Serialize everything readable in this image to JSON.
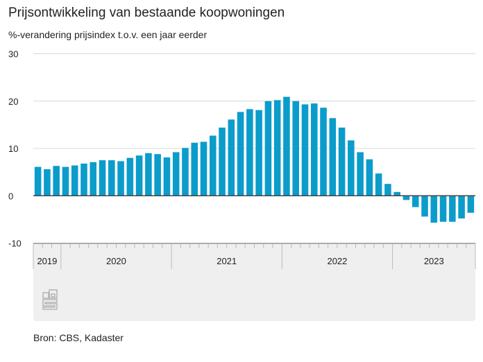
{
  "title": "Prijsontwikkeling van bestaande koopwoningen",
  "subtitle": "%-verandering prijsindex t.o.v. een jaar eerder",
  "source": "Bron: CBS, Kadaster",
  "logo": "cbs",
  "chart_data": {
    "type": "bar",
    "title": "Prijsontwikkeling van bestaande koopwoningen",
    "ylabel": "%-verandering prijsindex t.o.v. een jaar eerder",
    "ylim": [
      -10,
      30
    ],
    "yticks": [
      -10,
      0,
      10,
      20,
      30
    ],
    "grid": true,
    "color": "#0b9ccb",
    "years": [
      {
        "label": "2019",
        "months": 3
      },
      {
        "label": "2020",
        "months": 12
      },
      {
        "label": "2021",
        "months": 12
      },
      {
        "label": "2022",
        "months": 12
      },
      {
        "label": "2023",
        "months": 9
      }
    ],
    "categories": [
      "2019-10",
      "2019-11",
      "2019-12",
      "2020-01",
      "2020-02",
      "2020-03",
      "2020-04",
      "2020-05",
      "2020-06",
      "2020-07",
      "2020-08",
      "2020-09",
      "2020-10",
      "2020-11",
      "2020-12",
      "2021-01",
      "2021-02",
      "2021-03",
      "2021-04",
      "2021-05",
      "2021-06",
      "2021-07",
      "2021-08",
      "2021-09",
      "2021-10",
      "2021-11",
      "2021-12",
      "2022-01",
      "2022-02",
      "2022-03",
      "2022-04",
      "2022-05",
      "2022-06",
      "2022-07",
      "2022-08",
      "2022-09",
      "2022-10",
      "2022-11",
      "2022-12",
      "2023-01",
      "2023-02",
      "2023-03",
      "2023-04",
      "2023-05",
      "2023-06",
      "2023-07",
      "2023-08",
      "2023-09"
    ],
    "values": [
      6.1,
      5.6,
      6.3,
      6.1,
      6.4,
      6.8,
      7.1,
      7.5,
      7.5,
      7.3,
      8.0,
      8.5,
      9.0,
      8.8,
      8.1,
      9.2,
      10.1,
      11.2,
      11.4,
      12.7,
      14.4,
      16.1,
      17.7,
      18.3,
      18.1,
      20.0,
      20.2,
      20.9,
      20.0,
      19.3,
      19.5,
      18.6,
      16.4,
      14.4,
      11.7,
      9.2,
      7.7,
      4.7,
      2.5,
      0.8,
      -0.9,
      -2.4,
      -4.4,
      -5.7,
      -5.5,
      -5.5,
      -4.8,
      -3.6
    ]
  }
}
